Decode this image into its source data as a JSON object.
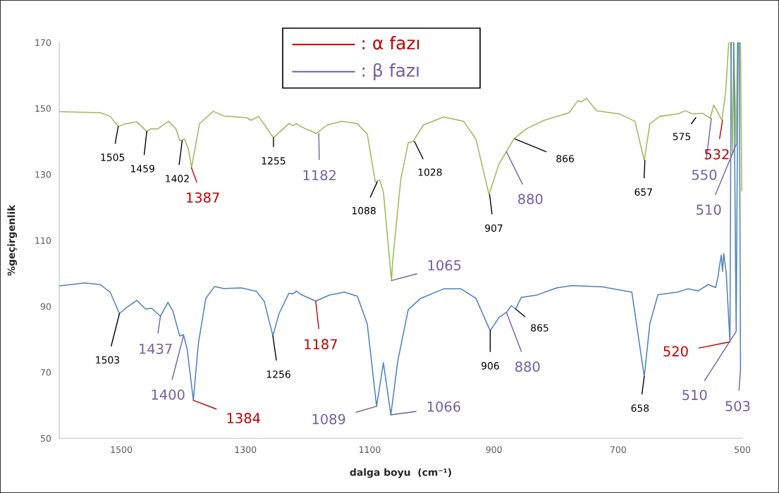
{
  "chart_data": {
    "type": "line",
    "xlabel": "dalga boyu  (cm⁻¹)",
    "ylabel": "%geçirgenlik",
    "xlim": [
      1600,
      500
    ],
    "xticks": [
      1500,
      1300,
      1100,
      900,
      700,
      500
    ],
    "ylim": [
      50,
      170
    ],
    "yticks": [
      50,
      70,
      90,
      110,
      130,
      150,
      170
    ],
    "grid": false,
    "series": [
      {
        "color": "#9bbb59",
        "x": [
          1600,
          1534,
          1518,
          1505,
          1494,
          1475,
          1459,
          1453,
          1441,
          1424,
          1412,
          1406,
          1398,
          1392,
          1387,
          1380,
          1374,
          1368,
          1352,
          1335,
          1299,
          1291,
          1279,
          1255,
          1230,
          1224,
          1218,
          1210,
          1186,
          1169,
          1145,
          1120,
          1104,
          1091,
          1084,
          1078,
          1065,
          1063,
          1050,
          1038,
          1030,
          1014,
          981,
          949,
          929,
          908,
          892,
          880,
          868,
          848,
          819,
          779,
          765,
          759,
          751,
          735,
          698,
          673,
          658,
          649,
          633,
          604,
          592,
          580,
          564,
          552,
          546,
          533,
          527,
          522,
          519,
          516,
          514,
          510,
          508,
          503,
          501
        ],
        "values": [
          149.0,
          148.7,
          147.6,
          144.5,
          145.3,
          145.9,
          143.0,
          143.8,
          143.8,
          146.1,
          143.8,
          140.2,
          140.7,
          137.7,
          132.0,
          139.2,
          145.4,
          146.4,
          149.1,
          147.7,
          147.2,
          146.4,
          147.6,
          141.1,
          145.4,
          144.7,
          145.4,
          144.4,
          142.4,
          144.9,
          146.1,
          145.4,
          142.2,
          127.7,
          128.3,
          124.7,
          97.8,
          103.9,
          128.5,
          139.6,
          140.0,
          144.9,
          147.4,
          146.1,
          140.7,
          123.9,
          133.1,
          136.9,
          140.7,
          143.8,
          146.4,
          148.7,
          152.3,
          152.0,
          153.1,
          149.3,
          148.3,
          146.1,
          134.2,
          145.3,
          147.6,
          148.3,
          149.3,
          148.3,
          148.5,
          147.0,
          151.0,
          146.4,
          154.8,
          170,
          170,
          136,
          170,
          139.0,
          170,
          170,
          125
        ]
      },
      {
        "color": "#4f81bd",
        "x": [
          1600,
          1559,
          1534,
          1518,
          1503,
          1494,
          1475,
          1461,
          1451,
          1437,
          1425,
          1417,
          1406,
          1400,
          1394,
          1384,
          1376,
          1364,
          1350,
          1335,
          1307,
          1283,
          1270,
          1256,
          1246,
          1230,
          1224,
          1218,
          1210,
          1187,
          1165,
          1141,
          1120,
          1104,
          1089,
          1078,
          1066,
          1055,
          1038,
          1018,
          981,
          953,
          929,
          906,
          892,
          880,
          872,
          865,
          856,
          831,
          799,
          775,
          726,
          678,
          658,
          649,
          636,
          604,
          588,
          571,
          555,
          543,
          539,
          537,
          534,
          532,
          530,
          526,
          520,
          518,
          514,
          510,
          507,
          505,
          503
        ],
        "values": [
          96.2,
          97.1,
          96.6,
          94.3,
          87.8,
          89.3,
          91.8,
          89.2,
          89.4,
          87.0,
          91.2,
          88.6,
          81.0,
          81.4,
          77.1,
          61.5,
          78.6,
          92.4,
          96.0,
          95.4,
          95.6,
          94.6,
          91.6,
          81.1,
          87.8,
          94.0,
          93.8,
          94.6,
          93.5,
          91.6,
          93.4,
          94.3,
          93.1,
          84.7,
          59.7,
          72.9,
          57.1,
          73.3,
          89.0,
          92.4,
          95.3,
          95.3,
          92.4,
          82.6,
          86.6,
          88.2,
          90.2,
          89.2,
          92.7,
          93.4,
          95.6,
          96.3,
          95.9,
          94.3,
          68.7,
          84.7,
          93.5,
          94.3,
          95.3,
          94.7,
          96.6,
          95.7,
          99.2,
          102,
          105.5,
          100.6,
          106,
          100,
          79.2,
          170,
          170,
          82.4,
          170,
          170,
          70.7
        ]
      }
    ],
    "annotations": [
      ": α fazı",
      ": β fazı",
      {
        "text": "1505",
        "x": 1505,
        "y": 144.5
      },
      {
        "text": "1459",
        "x": 1459,
        "y": 143.0
      },
      {
        "text": "1402",
        "x": 1402,
        "y": 140.2
      },
      {
        "text": "1387",
        "x": 1387,
        "y": 132.0
      },
      {
        "text": "1255",
        "x": 1255,
        "y": 141.1
      },
      {
        "text": "1182",
        "x": 1182,
        "y": 142.4
      },
      {
        "text": "1088",
        "x": 1088,
        "y": 127.7
      },
      {
        "text": "1065",
        "x": 1065,
        "y": 97.8
      },
      {
        "text": "1028",
        "x": 1028,
        "y": 140.0
      },
      {
        "text": "907",
        "x": 907,
        "y": 123.9
      },
      {
        "text": "880",
        "x": 880,
        "y": 136.9
      },
      {
        "text": "866",
        "x": 866,
        "y": 140.7
      },
      {
        "text": "657",
        "x": 657,
        "y": 134.2
      },
      {
        "text": "575",
        "x": 575,
        "y": 147.2
      },
      {
        "text": "550",
        "x": 550,
        "y": 147.0
      },
      {
        "text": "532",
        "x": 532,
        "y": 146.4
      },
      {
        "text": "510",
        "x": 510,
        "y": 139.0
      },
      {
        "text": "1503",
        "x": 1503,
        "y": 87.8
      },
      {
        "text": "1437",
        "x": 1437,
        "y": 87.0
      },
      {
        "text": "1400",
        "x": 1400,
        "y": 81.0
      },
      {
        "text": "1384",
        "x": 1384,
        "y": 61.5
      },
      {
        "text": "1256",
        "x": 1256,
        "y": 81.1
      },
      {
        "text": "1187",
        "x": 1187,
        "y": 91.6
      },
      {
        "text": "1089",
        "x": 1089,
        "y": 59.7
      },
      {
        "text": "1066",
        "x": 1066,
        "y": 57.1
      },
      {
        "text": "906",
        "x": 906,
        "y": 82.6
      },
      {
        "text": "880",
        "x": 880,
        "y": 88.2
      },
      {
        "text": "865",
        "x": 865,
        "y": 89.2
      },
      {
        "text": "658",
        "x": 658,
        "y": 68.7
      },
      {
        "text": "520",
        "x": 520,
        "y": 79.2
      },
      {
        "text": "510",
        "x": 510,
        "y": 82.4
      },
      {
        "text": "503",
        "x": 503,
        "y": 70.7
      }
    ]
  }
}
